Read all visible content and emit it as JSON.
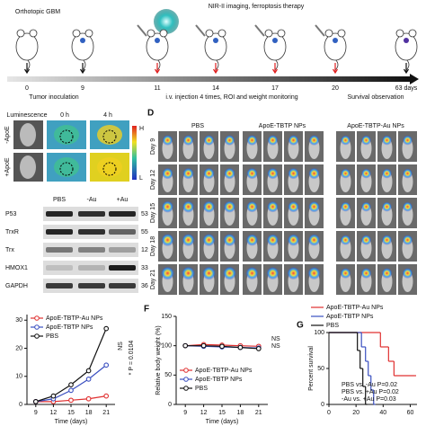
{
  "timeline": {
    "title": "NIR-II imaging, ferroptosis therapy",
    "model": "Orthotopic GBM",
    "days": [
      "0",
      "9",
      "11",
      "14",
      "17",
      "20",
      "63 days"
    ],
    "phases": [
      "Tumor inoculation",
      "i.v. injection 4 times, ROI and weight monitoring",
      "Survival observation"
    ]
  },
  "imaging": {
    "header": "Luminescence",
    "times": [
      "0 h",
      "4 h"
    ],
    "rows": [
      "-ApoE",
      "+ApoE"
    ],
    "scale": [
      "H",
      "L"
    ]
  },
  "blot": {
    "lanes": [
      "PBS",
      "-Au",
      "+Au"
    ],
    "rows": [
      {
        "protein": "P53",
        "kda": 53
      },
      {
        "protein": "TrxR",
        "kda": 55
      },
      {
        "protein": "Trx",
        "kda": 12
      },
      {
        "protein": "HMOX1",
        "kda": 33
      },
      {
        "protein": "GAPDH",
        "kda": 36
      }
    ]
  },
  "mouse_imaging": {
    "letter": "D",
    "groups": [
      "PBS",
      "ApoE-TBTP NPs",
      "ApoE-TBTP-Au NPs"
    ],
    "days": [
      "Day 9",
      "Day 12",
      "Day 15",
      "Day 18",
      "Day 21"
    ]
  },
  "chart_data": [
    {
      "type": "line",
      "xlabel": "Time (days)",
      "x": [
        9,
        12,
        15,
        18,
        21
      ],
      "xlim": [
        7.5,
        22.5
      ],
      "xticks": [
        9,
        12,
        15,
        18,
        21
      ],
      "ylim": [
        0,
        32
      ],
      "yticks": [
        0,
        10,
        20,
        30
      ],
      "legend": "upper left",
      "markers": true,
      "series": [
        {
          "name": "ApoE-TBTP-Au NPs",
          "color": "#e03030",
          "values": [
            1,
            1,
            1.5,
            2,
            3
          ]
        },
        {
          "name": "ApoE-TBTP NPs",
          "color": "#3a4fc0",
          "values": [
            1,
            2,
            5,
            9,
            14
          ]
        },
        {
          "name": "PBS",
          "color": "#111111",
          "values": [
            1,
            3,
            7,
            12,
            27
          ]
        }
      ],
      "annotations": [
        "NS",
        "* P = 0.0104"
      ]
    },
    {
      "type": "line",
      "panel": "F",
      "xlabel": "Time (days)",
      "ylabel": "Relative body weight (%)",
      "x": [
        9,
        12,
        15,
        18,
        21
      ],
      "xlim": [
        7.5,
        22.5
      ],
      "xticks": [
        9,
        12,
        15,
        18,
        21
      ],
      "ylim": [
        0,
        150
      ],
      "yticks": [
        0,
        50,
        100,
        150
      ],
      "legend": "lower left",
      "markers": true,
      "series": [
        {
          "name": "ApoE-TBTP-Au NPs",
          "color": "#e03030",
          "values": [
            100,
            102,
            101,
            100,
            99
          ]
        },
        {
          "name": "ApoE-TBTP NPs",
          "color": "#3a4fc0",
          "values": [
            100,
            99,
            98,
            97,
            96
          ]
        },
        {
          "name": "PBS",
          "color": "#111111",
          "values": [
            100,
            100,
            99,
            97,
            95
          ]
        }
      ],
      "annotations": [
        "NS",
        "NS"
      ]
    },
    {
      "type": "step",
      "panel": "G",
      "ylabel": "Percent survival",
      "xlim": [
        0,
        65
      ],
      "xticks": [
        0,
        20,
        40,
        60
      ],
      "ylim": [
        0,
        100
      ],
      "yticks": [
        0,
        50,
        100
      ],
      "legend": "top",
      "markers": false,
      "series": [
        {
          "name": "ApoE-TBTP-Au NPs",
          "color": "#e03030",
          "x": [
            0,
            38,
            44,
            48,
            63
          ],
          "values": [
            100,
            80,
            60,
            40,
            40
          ]
        },
        {
          "name": "ApoE-TBTP NPs",
          "color": "#3a4fc0",
          "x": [
            0,
            24,
            27,
            29,
            31,
            33
          ],
          "values": [
            100,
            80,
            60,
            40,
            20,
            0
          ]
        },
        {
          "name": "PBS",
          "color": "#111111",
          "x": [
            0,
            21,
            23,
            25,
            27
          ],
          "values": [
            100,
            75,
            50,
            25,
            0
          ]
        }
      ],
      "annotations": [
        "PBS vs. -Au  P=0.02",
        "PBS vs. +Au  P=0.02",
        "-Au  vs. +Au  P=0.03"
      ]
    }
  ]
}
